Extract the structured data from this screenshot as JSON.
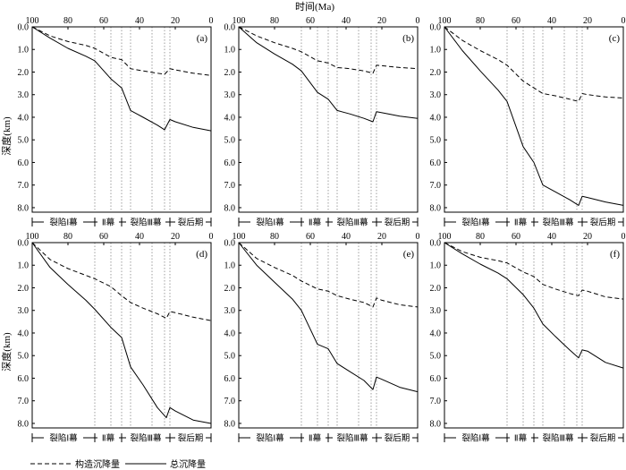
{
  "figure": {
    "x_axis_title": "时间(Ma)",
    "y_axis_title": "深度(km)",
    "legend": [
      {
        "label": "构造沉降量",
        "style": "dashed"
      },
      {
        "label": "总沉降量",
        "style": "solid"
      }
    ]
  },
  "chart_data": [
    {
      "type": "line",
      "panel_label": "(a)",
      "xlim": [
        100,
        0
      ],
      "ylim": [
        0,
        8.2
      ],
      "x_ticks": [
        "100",
        "80",
        "60",
        "40",
        "20",
        "0"
      ],
      "y_ticks": [
        "0.0",
        "1.0",
        "2.0",
        "3.0",
        "4.0",
        "5.0",
        "6.0",
        "7.0",
        "8.0"
      ],
      "phases": [
        "裂陷Ⅰ幕",
        "Ⅱ幕",
        "裂陷Ⅲ幕",
        "裂后期"
      ],
      "vlines": [
        65,
        56,
        50,
        45,
        33,
        26,
        23
      ],
      "series": [
        {
          "name": "构造沉降量",
          "style": "dashed",
          "x": [
            100,
            90,
            80,
            70,
            65,
            56,
            50,
            45,
            38,
            30,
            26,
            23,
            20,
            10,
            0
          ],
          "y": [
            0,
            0.4,
            0.65,
            0.82,
            0.95,
            1.35,
            1.45,
            1.85,
            1.95,
            2.05,
            2.1,
            1.85,
            1.9,
            2.05,
            2.15
          ]
        },
        {
          "name": "总沉降量",
          "style": "solid",
          "x": [
            100,
            90,
            80,
            70,
            65,
            56,
            50,
            45,
            38,
            30,
            26,
            23,
            20,
            10,
            0
          ],
          "y": [
            0,
            0.5,
            0.95,
            1.3,
            1.5,
            2.3,
            2.7,
            3.7,
            4.0,
            4.35,
            4.55,
            4.1,
            4.2,
            4.45,
            4.6
          ]
        }
      ]
    },
    {
      "type": "line",
      "panel_label": "(b)",
      "xlim": [
        100,
        0
      ],
      "ylim": [
        0,
        8.2
      ],
      "x_ticks": [
        "100",
        "80",
        "60",
        "40",
        "20",
        "0"
      ],
      "y_ticks": [
        "0.0",
        "1.0",
        "2.0",
        "3.0",
        "4.0",
        "5.0",
        "6.0",
        "7.0",
        "8.0"
      ],
      "phases": [
        "裂陷Ⅰ幕",
        "Ⅱ幕",
        "裂陷Ⅲ幕",
        "裂后期"
      ],
      "vlines": [
        65,
        56,
        50,
        45,
        33,
        26,
        23
      ],
      "series": [
        {
          "name": "构造沉降量",
          "style": "dashed",
          "x": [
            100,
            90,
            80,
            70,
            65,
            56,
            50,
            45,
            38,
            30,
            25,
            23,
            20,
            10,
            0
          ],
          "y": [
            0,
            0.4,
            0.7,
            0.95,
            1.1,
            1.5,
            1.6,
            1.8,
            1.85,
            1.95,
            2.05,
            1.7,
            1.72,
            1.8,
            1.85
          ]
        },
        {
          "name": "总沉降量",
          "style": "solid",
          "x": [
            100,
            90,
            80,
            70,
            65,
            56,
            50,
            45,
            38,
            30,
            25,
            23,
            20,
            10,
            0
          ],
          "y": [
            0,
            0.7,
            1.2,
            1.65,
            1.95,
            2.9,
            3.2,
            3.7,
            3.85,
            4.05,
            4.2,
            3.75,
            3.8,
            3.95,
            4.05
          ]
        }
      ]
    },
    {
      "type": "line",
      "panel_label": "(c)",
      "xlim": [
        100,
        0
      ],
      "ylim": [
        0,
        8.2
      ],
      "x_ticks": [
        "100",
        "80",
        "60",
        "40",
        "20",
        "0"
      ],
      "y_ticks": [
        "0.0",
        "1.0",
        "2.0",
        "3.0",
        "4.0",
        "5.0",
        "6.0",
        "7.0",
        "8.0"
      ],
      "phases": [
        "裂陷Ⅰ幕",
        "Ⅱ幕",
        "裂陷Ⅲ幕",
        "裂后期"
      ],
      "vlines": [
        65,
        56,
        50,
        45,
        33,
        26,
        23
      ],
      "series": [
        {
          "name": "构造沉降量",
          "style": "dashed",
          "x": [
            100,
            90,
            80,
            70,
            65,
            56,
            50,
            45,
            38,
            30,
            25,
            23,
            20,
            10,
            0
          ],
          "y": [
            0,
            0.6,
            1.05,
            1.45,
            1.7,
            2.4,
            2.7,
            2.95,
            3.05,
            3.2,
            3.3,
            2.95,
            3.0,
            3.1,
            3.15
          ]
        },
        {
          "name": "总沉降量",
          "style": "solid",
          "x": [
            100,
            90,
            80,
            70,
            65,
            56,
            50,
            45,
            38,
            30,
            25,
            23,
            20,
            10,
            0
          ],
          "y": [
            0,
            1.05,
            1.95,
            2.8,
            3.3,
            5.3,
            6.0,
            7.0,
            7.3,
            7.65,
            7.9,
            7.5,
            7.55,
            7.75,
            7.9
          ]
        }
      ]
    },
    {
      "type": "line",
      "panel_label": "(d)",
      "xlim": [
        100,
        0
      ],
      "ylim": [
        0,
        8.2
      ],
      "x_ticks": [
        "100",
        "80",
        "60",
        "40",
        "20",
        "0"
      ],
      "y_ticks": [
        "0.0",
        "1.0",
        "2.0",
        "3.0",
        "4.0",
        "5.0",
        "6.0",
        "7.0",
        "8.0"
      ],
      "phases": [
        "裂陷Ⅰ幕",
        "Ⅱ幕",
        "裂陷Ⅲ幕",
        "裂后期"
      ],
      "vlines": [
        65,
        56,
        50,
        45,
        33,
        26,
        23
      ],
      "series": [
        {
          "name": "构造沉降量",
          "style": "dashed",
          "x": [
            100,
            90,
            80,
            70,
            65,
            56,
            50,
            45,
            38,
            30,
            25,
            23,
            20,
            10,
            0
          ],
          "y": [
            0,
            0.75,
            1.15,
            1.45,
            1.6,
            1.95,
            2.35,
            2.65,
            2.9,
            3.15,
            3.35,
            3.05,
            3.1,
            3.3,
            3.45
          ]
        },
        {
          "name": "总沉降量",
          "style": "solid",
          "x": [
            100,
            90,
            80,
            70,
            65,
            56,
            50,
            45,
            38,
            30,
            25,
            23,
            20,
            10,
            0
          ],
          "y": [
            0,
            1.1,
            1.85,
            2.55,
            2.95,
            3.75,
            4.2,
            5.5,
            6.3,
            7.3,
            7.75,
            7.3,
            7.45,
            7.85,
            8.0
          ]
        }
      ]
    },
    {
      "type": "line",
      "panel_label": "(e)",
      "xlim": [
        100,
        0
      ],
      "ylim": [
        0,
        8.2
      ],
      "x_ticks": [
        "100",
        "80",
        "60",
        "40",
        "20",
        "0"
      ],
      "y_ticks": [
        "0.0",
        "1.0",
        "2.0",
        "3.0",
        "4.0",
        "5.0",
        "6.0",
        "7.0",
        "8.0"
      ],
      "phases": [
        "裂陷Ⅰ幕",
        "Ⅱ幕",
        "裂陷Ⅲ幕",
        "裂后期"
      ],
      "vlines": [
        65,
        56,
        50,
        45,
        33,
        26,
        23
      ],
      "series": [
        {
          "name": "构造沉降量",
          "style": "dashed",
          "x": [
            100,
            90,
            80,
            70,
            65,
            56,
            50,
            45,
            38,
            30,
            25,
            23,
            20,
            10,
            0
          ],
          "y": [
            0,
            0.7,
            1.1,
            1.45,
            1.7,
            2.05,
            2.15,
            2.35,
            2.5,
            2.65,
            2.85,
            2.45,
            2.55,
            2.75,
            2.85
          ]
        },
        {
          "name": "总沉降量",
          "style": "solid",
          "x": [
            100,
            90,
            80,
            70,
            65,
            56,
            50,
            45,
            38,
            30,
            25,
            23,
            20,
            10,
            0
          ],
          "y": [
            0,
            1.0,
            1.75,
            2.5,
            3.0,
            4.5,
            4.7,
            5.35,
            5.7,
            6.1,
            6.5,
            5.95,
            6.05,
            6.4,
            6.6
          ]
        }
      ]
    },
    {
      "type": "line",
      "panel_label": "(f)",
      "xlim": [
        100,
        0
      ],
      "ylim": [
        0,
        8.2
      ],
      "x_ticks": [
        "100",
        "80",
        "60",
        "40",
        "20",
        "0"
      ],
      "y_ticks": [
        "0.0",
        "1.0",
        "2.0",
        "3.0",
        "4.0",
        "5.0",
        "6.0",
        "7.0",
        "8.0"
      ],
      "phases": [
        "裂陷Ⅰ幕",
        "Ⅱ幕",
        "裂陷Ⅲ幕",
        "裂后期"
      ],
      "vlines": [
        65,
        56,
        50,
        45,
        33,
        26,
        23
      ],
      "series": [
        {
          "name": "构造沉降量",
          "style": "dashed",
          "x": [
            100,
            90,
            80,
            70,
            65,
            56,
            50,
            45,
            38,
            30,
            25,
            23,
            20,
            10,
            0
          ],
          "y": [
            0,
            0.4,
            0.65,
            0.8,
            0.9,
            1.3,
            1.5,
            1.85,
            2.05,
            2.25,
            2.35,
            2.1,
            2.15,
            2.4,
            2.5
          ]
        },
        {
          "name": "总沉降量",
          "style": "solid",
          "x": [
            100,
            90,
            80,
            70,
            65,
            56,
            50,
            45,
            38,
            30,
            25,
            23,
            20,
            10,
            0
          ],
          "y": [
            0,
            0.5,
            0.95,
            1.35,
            1.6,
            2.3,
            2.9,
            3.6,
            4.15,
            4.75,
            5.1,
            4.75,
            4.8,
            5.3,
            5.55
          ]
        }
      ]
    }
  ]
}
